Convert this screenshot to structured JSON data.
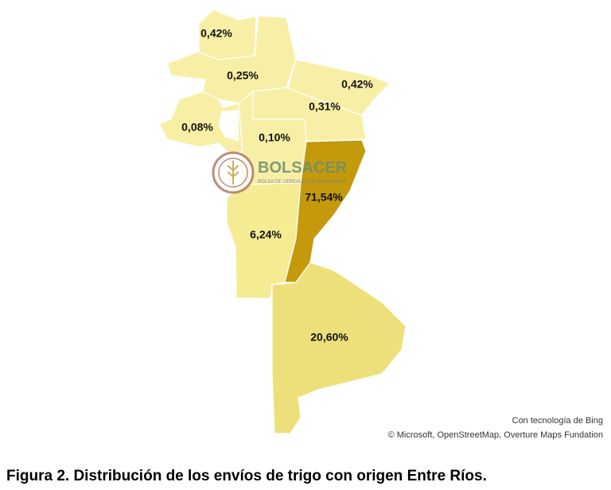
{
  "map": {
    "regions": [
      {
        "label": "0,42%"
      },
      {
        "label": "0,25%"
      },
      {
        "label": "0,42%"
      },
      {
        "label": "0,31%"
      },
      {
        "label": "0,08%"
      },
      {
        "label": "0,10%"
      },
      {
        "label": "71,54%"
      },
      {
        "label": "6,24%"
      },
      {
        "label": "20,60%"
      }
    ],
    "logo": {
      "name": "BOLSACER",
      "subtitle": "BOLSA DE CEREALES DE ENTRE RÍOS"
    },
    "attribution": [
      "Con tecnología de Bing",
      "© Microsoft, OpenStreetMap, Overture Maps Fundation"
    ]
  },
  "caption": "Figura 2. Distribución de los envíos de trigo con origen Entre Ríos."
}
